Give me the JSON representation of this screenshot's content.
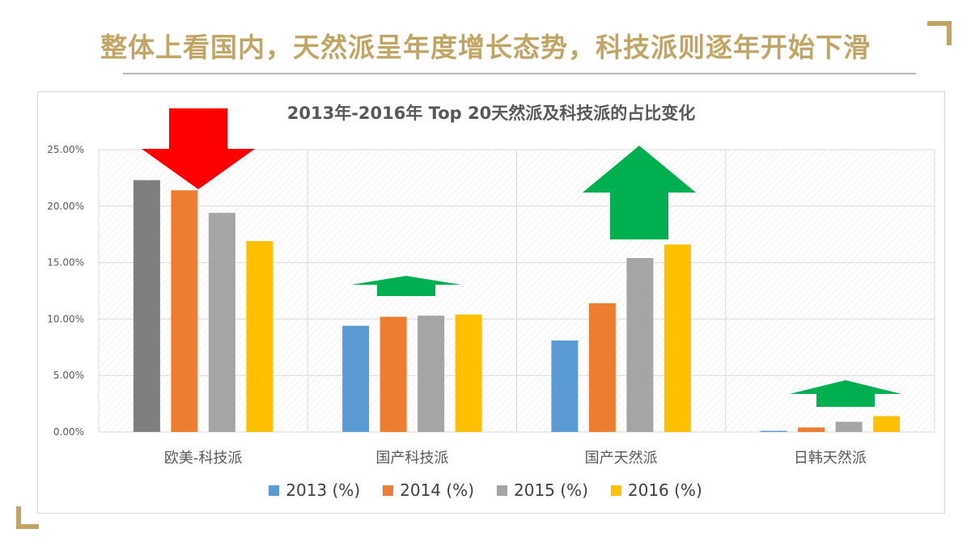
{
  "headline": "整体上看国内，天然派呈年度增长态势，科技派则逐年开始下滑",
  "colors": {
    "headline": "#c1a565",
    "rule": "#b8b8b8",
    "corner": "#c1a565",
    "grid": "#d9d9d9",
    "axis_text": "#595959",
    "arrow_down": "#ff0000",
    "arrow_up": "#00b050",
    "highlight_gray": "#7f7f7f"
  },
  "chart_data": {
    "type": "bar",
    "title": "2013年-2016年 Top 20天然派及科技派的占比变化",
    "xlabel": "",
    "ylabel": "",
    "categories": [
      "欧美-科技派",
      "国产科技派",
      "国产天然派",
      "日韩天然派"
    ],
    "series": [
      {
        "name": "2013 (%)",
        "color": "#5b9bd5",
        "values": [
          22.3,
          9.4,
          8.1,
          0.1
        ]
      },
      {
        "name": "2014 (%)",
        "color": "#ed7d31",
        "values": [
          21.4,
          10.2,
          11.4,
          0.4
        ]
      },
      {
        "name": "2015 (%)",
        "color": "#a5a5a5",
        "values": [
          19.4,
          10.3,
          15.4,
          0.9
        ]
      },
      {
        "name": "2016 (%)",
        "color": "#ffc000",
        "values": [
          16.9,
          10.4,
          16.6,
          1.4
        ]
      }
    ],
    "special_bar_colors": [
      {
        "category": 0,
        "series": 0,
        "color": "#7f7f7f"
      }
    ],
    "ylim": [
      0,
      25
    ],
    "yticks": [
      0,
      5,
      10,
      15,
      20,
      25
    ],
    "ytick_labels": [
      "0.00%",
      "5.00%",
      "10.00%",
      "15.00%",
      "20.00%",
      "25.00%"
    ],
    "grid": true,
    "legend_position": "bottom",
    "trend_arrows": [
      {
        "category": 0,
        "direction": "down",
        "color": "#ff0000"
      },
      {
        "category": 1,
        "direction": "up",
        "color": "#00b050"
      },
      {
        "category": 2,
        "direction": "up",
        "color": "#00b050"
      },
      {
        "category": 3,
        "direction": "up",
        "color": "#00b050"
      }
    ]
  }
}
